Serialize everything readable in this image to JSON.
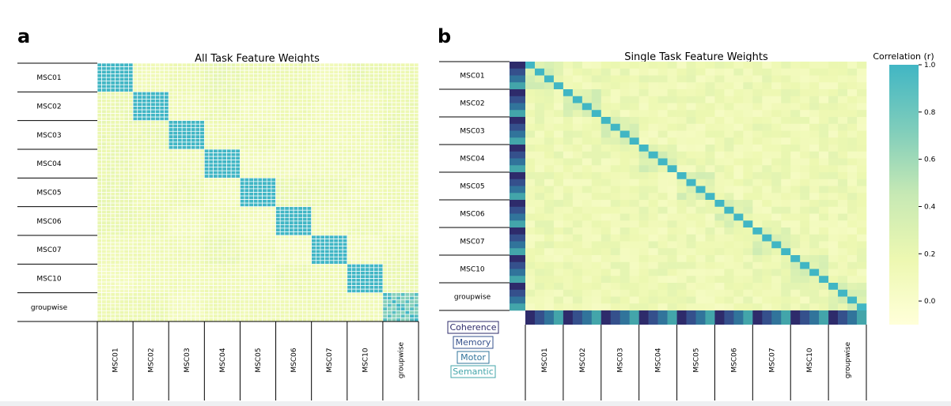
{
  "panels": [
    {
      "letter": "a",
      "title": "All Task Feature Weights"
    },
    {
      "letter": "b",
      "title": "Single Task Feature Weights"
    }
  ],
  "subjects": [
    "MSC01",
    "MSC02",
    "MSC03",
    "MSC04",
    "MSC05",
    "MSC06",
    "MSC07",
    "MSC10",
    "groupwise"
  ],
  "tasks": [
    {
      "name": "Coherence",
      "color": "#2e2b6b"
    },
    {
      "name": "Memory",
      "color": "#35508c"
    },
    {
      "name": "Motor",
      "color": "#31749b"
    },
    {
      "name": "Semantic",
      "color": "#43a5aa"
    }
  ],
  "colorbar": {
    "label": "Correlation (r)",
    "ticks": [
      "1.0",
      "0.8",
      "0.6",
      "0.4",
      "0.2",
      "0.0"
    ],
    "range": [
      -0.1,
      1.0
    ],
    "colors": [
      "#ffffd9",
      "#edf8b1",
      "#c7e9b4",
      "#7fcdbb",
      "#41b6c4"
    ]
  },
  "chart_data": [
    {
      "type": "heatmap",
      "title": "All Task Feature Weights",
      "rows": [
        "MSC01",
        "MSC02",
        "MSC03",
        "MSC04",
        "MSC05",
        "MSC06",
        "MSC07",
        "MSC10",
        "groupwise"
      ],
      "cols": [
        "MSC01",
        "MSC02",
        "MSC03",
        "MSC04",
        "MSC05",
        "MSC06",
        "MSC07",
        "MSC10",
        "groupwise"
      ],
      "cells_per_block": 8,
      "within_subject_r": 1.0,
      "between_subject_r_approx": 0.15
    },
    {
      "type": "heatmap",
      "title": "Single Task Feature Weights",
      "rows": [
        "MSC01",
        "MSC02",
        "MSC03",
        "MSC04",
        "MSC05",
        "MSC06",
        "MSC07",
        "MSC10",
        "groupwise"
      ],
      "cols": [
        "MSC01",
        "MSC02",
        "MSC03",
        "MSC04",
        "MSC05",
        "MSC06",
        "MSC07",
        "MSC10",
        "groupwise"
      ],
      "cells_per_block": 4,
      "cell_order": [
        "Coherence",
        "Memory",
        "Motor",
        "Semantic"
      ],
      "diagonal_r": 1.0,
      "within_subject_r_approx": 0.3,
      "between_subject_r_approx": 0.15
    }
  ]
}
